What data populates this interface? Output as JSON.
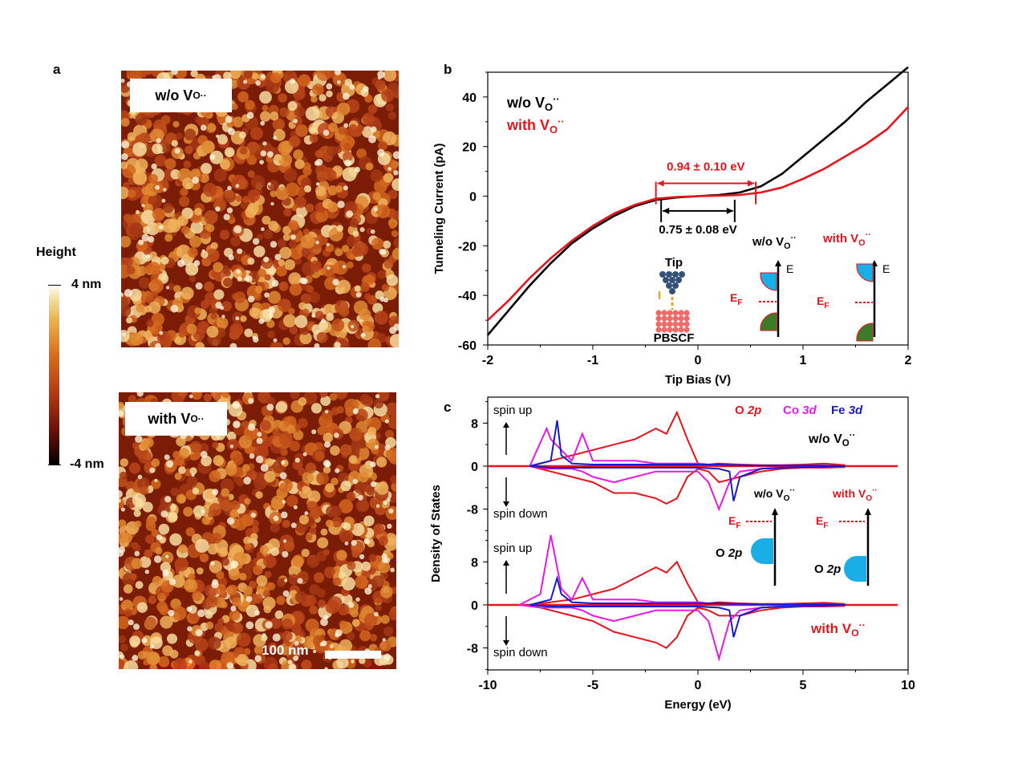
{
  "panels": {
    "a": "a",
    "b": "b",
    "c": "c"
  },
  "panel_a": {
    "top_image_label": {
      "main": "w/o V",
      "sub": "O",
      "sup": "··"
    },
    "bottom_image_label": {
      "main": "with V",
      "sub": "O",
      "sup": "··"
    },
    "colorbar": {
      "title": "Height",
      "max_label": "4 nm",
      "min_label": "-4 nm"
    },
    "scalebar_label": "100 nm"
  },
  "chart_data": [
    {
      "type": "line",
      "panel": "b",
      "xlabel": "Tip Bias (V)",
      "ylabel": "Tunneling Current  (pA)",
      "xlim": [
        -2,
        2
      ],
      "ylim": [
        -60,
        50
      ],
      "xticks": [
        "-2",
        "-1",
        "0",
        "1",
        "2"
      ],
      "yticks": [
        "-60",
        "-40",
        "-20",
        "0",
        "20",
        "40"
      ],
      "legend_placement": "top-left",
      "series": [
        {
          "name": "w/o  V",
          "name_sub": "O",
          "name_sup": "··",
          "color": "#000000",
          "x": [
            -2.0,
            -1.8,
            -1.6,
            -1.4,
            -1.2,
            -1.0,
            -0.8,
            -0.6,
            -0.4,
            -0.2,
            0.0,
            0.2,
            0.4,
            0.6,
            0.8,
            1.0,
            1.2,
            1.4,
            1.6,
            1.8,
            2.0
          ],
          "y": [
            -56,
            -46,
            -36,
            -27,
            -19,
            -13,
            -8,
            -4,
            -1.5,
            -0.5,
            0,
            0.5,
            1.5,
            4,
            9,
            16,
            23,
            30,
            38,
            45,
            52
          ]
        },
        {
          "name": "with  V",
          "name_sub": "O",
          "name_sup": "··",
          "color": "#e8141c",
          "x": [
            -2.0,
            -1.8,
            -1.6,
            -1.4,
            -1.2,
            -1.0,
            -0.8,
            -0.6,
            -0.4,
            -0.2,
            0.0,
            0.2,
            0.4,
            0.6,
            0.8,
            1.0,
            1.2,
            1.4,
            1.6,
            1.8,
            2.0
          ],
          "y": [
            -50,
            -42,
            -33,
            -25,
            -18,
            -12,
            -7,
            -3.5,
            -1,
            -0.3,
            0,
            0.2,
            0.5,
            1.5,
            3.5,
            7,
            11,
            16,
            21,
            27,
            36
          ]
        }
      ],
      "annotations": {
        "red_gap": {
          "text": "0.94 ± 0.10 eV",
          "x_range": [
            -0.4,
            0.55
          ],
          "y": 0,
          "color": "#e8141c"
        },
        "black_gap": {
          "text": "0.75 ± 0.08 eV",
          "x_range": [
            -0.35,
            0.35
          ],
          "y": -4,
          "color": "#000000"
        },
        "tip_label": "Tip",
        "current_label": "I",
        "sample_label": "PBSCF",
        "diagram_wo_title": {
          "main": "w/o V",
          "sub": "O",
          "sup": "··"
        },
        "diagram_with_title": {
          "main": "with  V",
          "sub": "O",
          "sup": "··"
        },
        "energy_label": "E",
        "fermi_label": {
          "main": "E",
          "sub": "F"
        }
      }
    },
    {
      "type": "line",
      "panel": "c",
      "xlabel": "Energy (eV)",
      "ylabel": "Density of States",
      "xlim": [
        -10,
        10
      ],
      "xticks": [
        "-10",
        "-5",
        "0",
        "5",
        "10"
      ],
      "yticks_top": [
        "8",
        "0",
        "-8"
      ],
      "yticks_bottom": [
        "8",
        "0",
        "-8"
      ],
      "legend": [
        {
          "main": "O ",
          "italic": "2p",
          "color": "#e8141c"
        },
        {
          "main": "Co ",
          "italic": "3d",
          "color": "#e619e6"
        },
        {
          "main": "Fe ",
          "italic": "3d",
          "color": "#1a1ad0"
        }
      ],
      "legend_placement": "top-right",
      "subplots": [
        {
          "label": {
            "main": "w/o V",
            "sub": "O",
            "sup": "··"
          },
          "series": [
            {
              "name": "O 2p",
              "color": "#e8141c",
              "x": [
                -8,
                -7,
                -6,
                -5,
                -4,
                -3,
                -2,
                -1.5,
                -1,
                -0.5,
                0,
                0.5,
                1,
                2,
                3,
                4,
                5,
                6,
                7
              ],
              "up": [
                0,
                1,
                2,
                3,
                4,
                5,
                7,
                6,
                10,
                5,
                0.5,
                0.3,
                0.5,
                0.3,
                0.2,
                0.2,
                0.3,
                0.5,
                0.2
              ],
              "down": [
                0,
                -1,
                -2,
                -3,
                -5,
                -5,
                -6,
                -7,
                -6,
                -2,
                -0.5,
                -1,
                -3,
                -2,
                -1,
                -0.5,
                -0.3,
                -0.3,
                -0.2
              ]
            },
            {
              "name": "Co 3d",
              "color": "#e619e6",
              "x": [
                -8,
                -7.2,
                -7,
                -6.5,
                -6,
                -5.5,
                -5,
                -4,
                -3,
                -2,
                -1,
                0,
                0.5,
                1,
                1.5,
                2,
                3,
                4,
                5,
                6,
                7
              ],
              "up": [
                0,
                7,
                5,
                3,
                1,
                6,
                1,
                1,
                1,
                0.5,
                0.5,
                0.5,
                0.3,
                0.3,
                0.2,
                0.2,
                0.1,
                0.1,
                0.1,
                0.1,
                0
              ],
              "down": [
                0,
                -0.5,
                -0.5,
                -0.5,
                -0.5,
                -1,
                -2,
                -3,
                -2,
                -1,
                -1,
                -1,
                -3,
                -8,
                -3,
                -1,
                -0.5,
                -0.3,
                -0.2,
                -0.1,
                0
              ]
            },
            {
              "name": "Fe 3d",
              "color": "#1a1ad0",
              "x": [
                -8,
                -7,
                -6.7,
                -6.5,
                -6,
                -5,
                -4,
                -3,
                -2,
                -1,
                0,
                1,
                1.5,
                1.7,
                2,
                3,
                4,
                5,
                6,
                7
              ],
              "up": [
                0,
                1,
                8.5,
                2,
                0.5,
                0.3,
                0.3,
                0.3,
                0.3,
                0.3,
                0.3,
                0.3,
                0.2,
                0.2,
                0.2,
                0.1,
                0.1,
                0.1,
                0.1,
                0
              ],
              "down": [
                0,
                -0.3,
                -0.3,
                -0.3,
                -0.3,
                -0.3,
                -0.3,
                -0.3,
                -0.3,
                -0.3,
                -0.3,
                -0.5,
                -1,
                -6.5,
                -2,
                -0.5,
                -0.3,
                -0.2,
                -0.1,
                0
              ]
            }
          ]
        },
        {
          "label": {
            "main": "with V",
            "sub": "O",
            "sup": "··"
          },
          "series": [
            {
              "name": "O 2p",
              "color": "#e8141c",
              "x": [
                -8,
                -7,
                -6,
                -5,
                -4,
                -3,
                -2,
                -1.5,
                -1,
                -0.5,
                0,
                0.5,
                1,
                2,
                3,
                4,
                5,
                6,
                7
              ],
              "up": [
                0,
                0.5,
                1,
                2,
                3,
                5,
                7,
                6,
                8,
                4,
                0.5,
                0.3,
                0.5,
                0.3,
                0.2,
                0.2,
                0.3,
                0.4,
                0.2
              ],
              "down": [
                0,
                -1,
                -2,
                -3,
                -5,
                -6,
                -7,
                -8,
                -6,
                -2,
                -0.5,
                -1,
                -2,
                -2,
                -1,
                -0.5,
                -0.3,
                -0.3,
                -0.2
              ]
            },
            {
              "name": "Co 3d",
              "color": "#e619e6",
              "x": [
                -8.5,
                -7.5,
                -7,
                -6.5,
                -6,
                -5.5,
                -5,
                -4,
                -3,
                -2,
                -1,
                0,
                0.5,
                1,
                1.5,
                2,
                3,
                4,
                5,
                6,
                7
              ],
              "up": [
                0,
                2,
                13,
                3,
                1,
                5,
                1,
                1,
                1,
                0.5,
                0.5,
                0.5,
                0.3,
                0.3,
                0.2,
                0.2,
                0.1,
                0.1,
                0.1,
                0.1,
                0
              ],
              "down": [
                0,
                -0.5,
                -0.5,
                -0.5,
                -0.5,
                -1,
                -2,
                -3,
                -2,
                -1,
                -1,
                -1,
                -3,
                -10,
                -3,
                -1,
                -0.5,
                -0.3,
                -0.2,
                -0.1,
                0
              ]
            },
            {
              "name": "Fe 3d",
              "color": "#1a1ad0",
              "x": [
                -8,
                -7,
                -6.7,
                -6.5,
                -6,
                -5,
                -4,
                -3,
                -2,
                -1,
                0,
                1,
                1.5,
                1.7,
                2,
                3,
                4,
                5,
                6,
                7
              ],
              "up": [
                0,
                1,
                5,
                2,
                0.5,
                0.3,
                0.3,
                0.3,
                0.3,
                0.3,
                0.3,
                0.3,
                0.2,
                0.2,
                0.2,
                0.1,
                0.1,
                0.1,
                0.1,
                0
              ],
              "down": [
                0,
                -0.3,
                -0.3,
                -0.3,
                -0.3,
                -0.3,
                -0.3,
                -0.3,
                -0.3,
                -0.3,
                -0.3,
                -0.5,
                -1,
                -6,
                -2,
                -0.5,
                -0.3,
                -0.2,
                -0.1,
                0
              ]
            }
          ]
        }
      ],
      "annotations": {
        "spin_up": "spin up",
        "spin_down": "spin down",
        "inset_wo_title": {
          "main": "w/o V",
          "sub": "O",
          "sup": "··"
        },
        "inset_with_title": {
          "main": "with V",
          "sub": "O",
          "sup": "··"
        },
        "fermi_label": {
          "main": "E",
          "sub": "F"
        },
        "orbital_label": {
          "main": "O ",
          "italic": "2p"
        }
      }
    }
  ]
}
